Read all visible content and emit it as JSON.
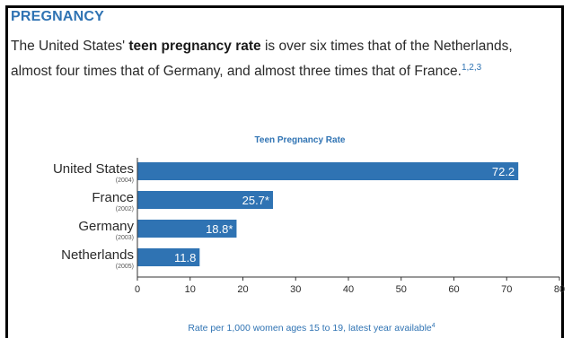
{
  "section": {
    "heading": "PREGNANCY",
    "intro_before": "The United States' ",
    "intro_bold": "teen pregnancy rate",
    "intro_after": " is over six times that of the Netherlands, almost four times that of Germany, and almost three times that of France.",
    "intro_refs": "1,2,3"
  },
  "colors": {
    "accent": "#2f73b3",
    "bar": "#2f73b3",
    "text": "#2a2a2a"
  },
  "chart_data": {
    "type": "bar",
    "orientation": "horizontal",
    "title": "Teen Pregnancy Rate",
    "categories": [
      "United States",
      "France",
      "Germany",
      "Netherlands"
    ],
    "years": [
      "(2004)",
      "(2002)",
      "(2003)",
      "(2005)"
    ],
    "values": [
      72.2,
      25.7,
      18.8,
      11.8
    ],
    "value_labels": [
      "72.2",
      "25.7*",
      "18.8*",
      "11.8"
    ],
    "xlim": [
      0,
      80
    ],
    "xticks": [
      0,
      10,
      20,
      30,
      40,
      50,
      60,
      70,
      80
    ],
    "xlabel": "Rate per 1,000 women ages 15 to 19, latest year available",
    "xlabel_ref": "4",
    "grid": false,
    "legend": "none"
  }
}
